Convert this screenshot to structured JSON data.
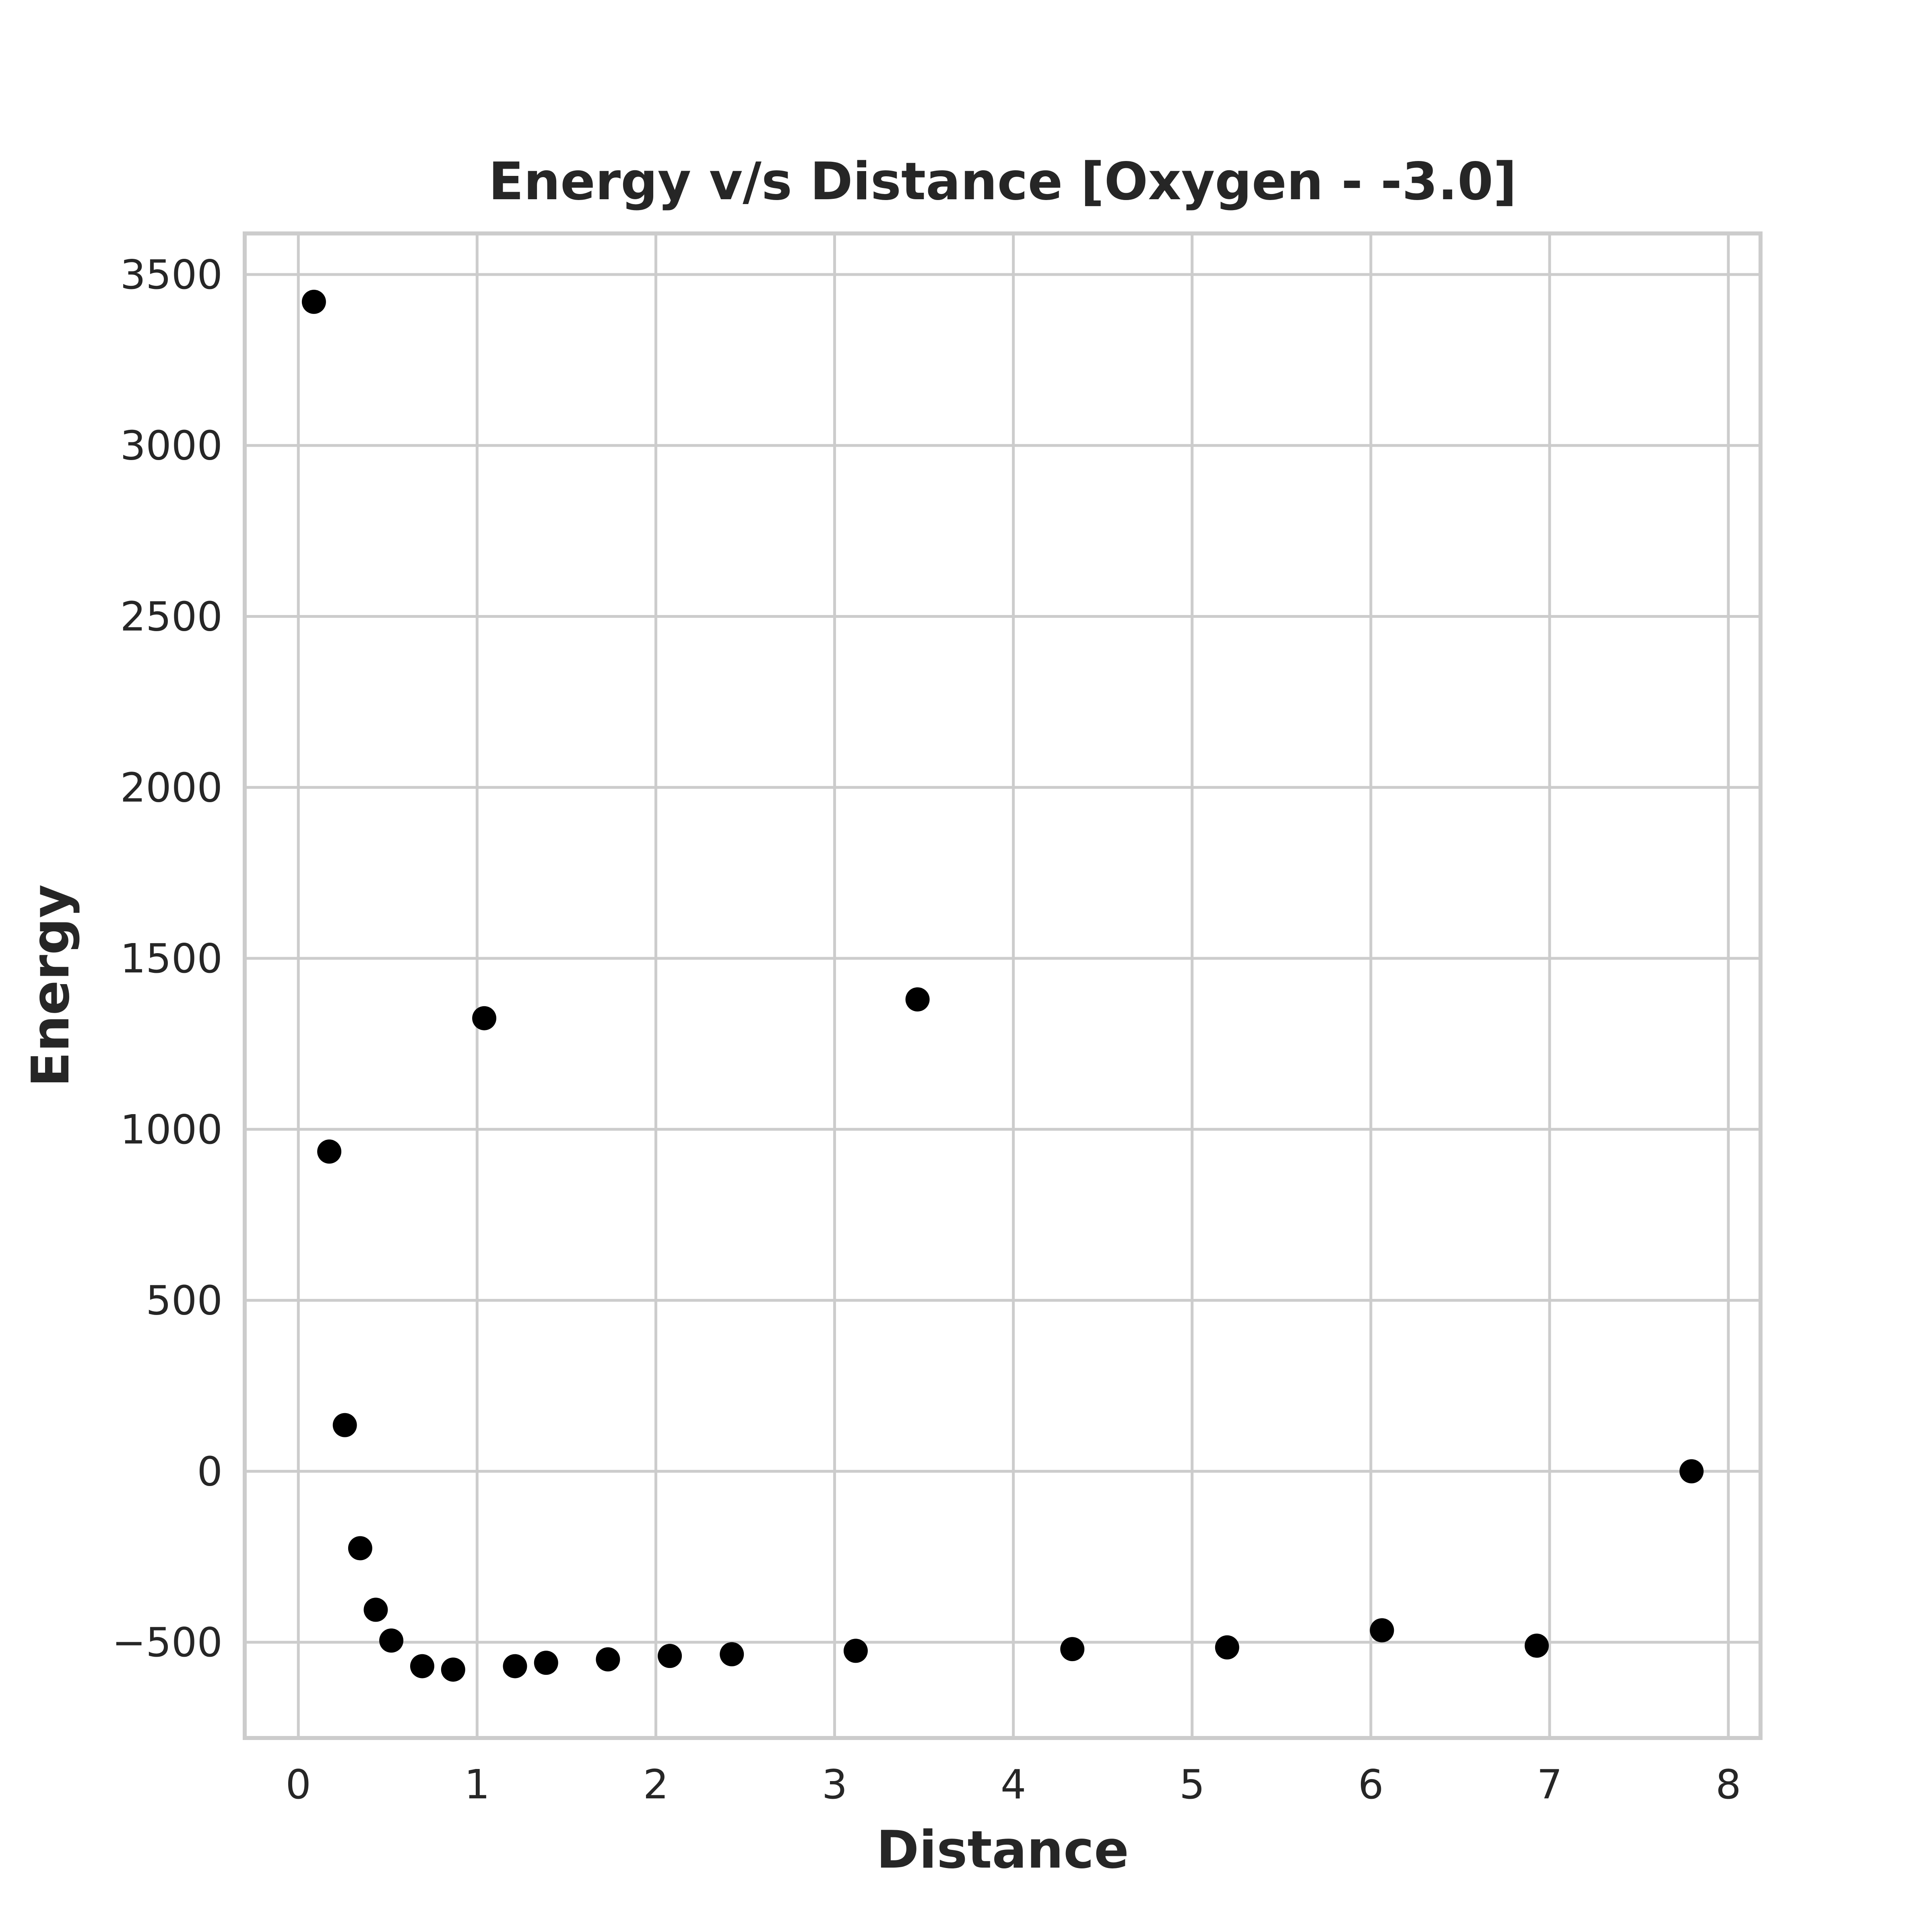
{
  "chart_data": {
    "type": "scatter",
    "title": "Energy v/s Distance [Oxygen - -3.0]",
    "xlabel": "Distance",
    "ylabel": "Energy",
    "xlim": [
      -0.3,
      8.18
    ],
    "ylim": [
      -780,
      3620
    ],
    "xticks": [
      0,
      1,
      2,
      3,
      4,
      5,
      6,
      7,
      8
    ],
    "xtick_labels": [
      "0",
      "1",
      "2",
      "3",
      "4",
      "5",
      "6",
      "7",
      "8"
    ],
    "yticks": [
      -500,
      0,
      500,
      1000,
      1500,
      2000,
      2500,
      3000,
      3500
    ],
    "ytick_labels": [
      "−500",
      "0",
      "500",
      "1000",
      "1500",
      "2000",
      "2500",
      "3000",
      "3500"
    ],
    "grid": true,
    "marker_color": "#000000",
    "grid_color": "#cccccc",
    "text_color": "#262626",
    "points": [
      {
        "x": 0.087,
        "y": 3420
      },
      {
        "x": 0.173,
        "y": 935
      },
      {
        "x": 0.26,
        "y": 135
      },
      {
        "x": 0.346,
        "y": -225
      },
      {
        "x": 0.433,
        "y": -405
      },
      {
        "x": 0.52,
        "y": -495
      },
      {
        "x": 0.693,
        "y": -570
      },
      {
        "x": 0.866,
        "y": -580
      },
      {
        "x": 1.04,
        "y": 1325
      },
      {
        "x": 1.212,
        "y": -570
      },
      {
        "x": 1.386,
        "y": -560
      },
      {
        "x": 1.732,
        "y": -550
      },
      {
        "x": 2.078,
        "y": -540
      },
      {
        "x": 2.425,
        "y": -535
      },
      {
        "x": 3.118,
        "y": -525
      },
      {
        "x": 3.464,
        "y": 1380
      },
      {
        "x": 4.33,
        "y": -520
      },
      {
        "x": 5.196,
        "y": -515
      },
      {
        "x": 6.062,
        "y": -465
      },
      {
        "x": 6.928,
        "y": -510
      },
      {
        "x": 7.794,
        "y": 0
      }
    ]
  }
}
